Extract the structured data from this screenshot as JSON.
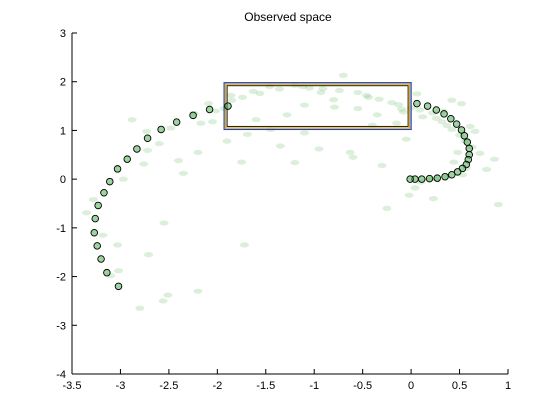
{
  "chart_data": {
    "type": "scatter",
    "title": "Observed space",
    "xlabel": "",
    "ylabel": "",
    "xlim": [
      -3.5,
      1
    ],
    "ylim": [
      -4,
      3
    ],
    "xticks": [
      -3.5,
      -3,
      -2.5,
      -2,
      -1.5,
      -1,
      -0.5,
      0,
      0.5,
      1
    ],
    "xtick_labels": [
      "-3.5",
      "-3",
      "-2.5",
      "-2",
      "-1.5",
      "-1",
      "-0.5",
      "0",
      "0.5",
      "1"
    ],
    "yticks": [
      -4,
      -3,
      -2,
      -1,
      0,
      1,
      2,
      3
    ],
    "ytick_labels": [
      "-4",
      "-3",
      "-2",
      "-1",
      "0",
      "1",
      "2",
      "3"
    ],
    "grid": false,
    "legend": "none",
    "colors": {
      "cloud": "#5cb85c",
      "marker_fill": "#4caf50",
      "marker_edge": "#000000",
      "box_outer": "#1f3fbf",
      "box_mid": "#e0a800",
      "box_inner": "#1a1a1a"
    },
    "series": [
      {
        "style": "faint-cloud",
        "x": [
          -3.02,
          -3.03,
          -2.56,
          -2.51,
          -3.18,
          -3.35,
          -3.28,
          -2.97,
          -2.76,
          -2.72,
          -2.73,
          -2.88,
          -2.17,
          -2.24,
          -2.02,
          -2.09,
          -2.48,
          -2.6,
          -1.86,
          -1.74,
          -1.63,
          -1.56,
          -1.93,
          -1.36,
          -1.46,
          -1.2,
          -1.12,
          -1.05,
          -1.28,
          -0.91,
          -0.93,
          -0.74,
          -0.79,
          -0.55,
          -0.46,
          -0.44,
          -0.4,
          -0.33,
          -0.2,
          -0.13,
          -0.1,
          -0.08,
          0.0,
          0.09,
          0.22,
          0.26,
          0.32,
          0.37,
          0.42,
          0.5,
          0.56,
          0.63,
          0.71,
          0.48,
          0.44,
          0.57,
          0.53,
          0.36,
          0.25,
          0.19,
          0.1,
          0.04,
          -0.02,
          -0.63,
          -1.2,
          -1.69,
          -0.7,
          0.06,
          0.42,
          0.61,
          0.9,
          0.23,
          -0.25,
          -1.72,
          -2.2,
          -2.8,
          -2.71,
          -2.55,
          -3.1,
          -2.4,
          -2.2,
          -2.35,
          -1.9,
          -1.75,
          -1.45,
          -1.35,
          -1.1,
          -0.95,
          -0.6,
          -0.3,
          -0.05,
          -2.05,
          -1.85,
          -1.6,
          -1.1,
          -0.8,
          -0.55,
          -0.35,
          -0.15,
          0.12,
          0.33,
          0.52,
          0.66,
          0.78,
          0.86
        ],
        "y": [
          -1.88,
          -1.35,
          -2.5,
          -2.38,
          -1.15,
          -0.69,
          -0.42,
          0.0,
          0.31,
          0.59,
          0.98,
          1.22,
          1.15,
          1.35,
          1.4,
          1.55,
          1.05,
          0.73,
          1.72,
          1.68,
          1.8,
          1.76,
          1.45,
          1.85,
          1.9,
          1.93,
          1.9,
          1.87,
          1.32,
          1.86,
          1.78,
          1.82,
          1.48,
          1.78,
          1.72,
          1.68,
          1.11,
          1.64,
          1.57,
          1.53,
          1.44,
          1.38,
          1.46,
          1.42,
          1.36,
          1.25,
          1.18,
          1.1,
          1.02,
          0.9,
          0.78,
          0.66,
          0.53,
          0.55,
          0.35,
          0.22,
          0.09,
          0.04,
          0.01,
          0.0,
          -0.06,
          -0.18,
          -0.33,
          0.55,
          0.34,
          0.92,
          2.13,
          1.75,
          1.62,
          1.08,
          -0.52,
          -0.4,
          -0.6,
          -1.35,
          -2.3,
          -2.65,
          -1.55,
          -0.9,
          -1.98,
          0.38,
          0.55,
          0.12,
          0.78,
          0.35,
          1.02,
          0.68,
          0.95,
          0.62,
          0.45,
          0.28,
          0.82,
          1.18,
          1.62,
          1.22,
          1.52,
          1.63,
          1.45,
          1.32,
          1.15,
          1.28,
          1.4,
          1.55,
          0.98,
          0.2,
          0.41
        ]
      },
      {
        "style": "marker",
        "x": [
          -3.02,
          -3.14,
          -3.2,
          -3.24,
          -3.27,
          -3.26,
          -3.23,
          -3.17,
          -3.11,
          -3.03,
          -2.93,
          -2.83,
          -2.72,
          -2.58,
          -2.42,
          -2.25,
          -2.08,
          -1.89,
          0.06,
          0.17,
          0.26,
          0.34,
          0.41,
          0.47,
          0.52,
          0.55,
          0.58,
          0.6,
          0.6,
          0.59,
          0.57,
          0.53,
          0.48,
          0.42,
          0.35,
          0.27,
          0.19,
          0.11,
          0.04,
          -0.01
        ],
        "y": [
          -2.2,
          -1.92,
          -1.64,
          -1.37,
          -1.1,
          -0.81,
          -0.54,
          -0.28,
          -0.05,
          0.21,
          0.41,
          0.62,
          0.84,
          1.02,
          1.17,
          1.31,
          1.43,
          1.5,
          1.55,
          1.5,
          1.42,
          1.34,
          1.24,
          1.13,
          1.01,
          0.89,
          0.76,
          0.63,
          0.5,
          0.4,
          0.3,
          0.22,
          0.15,
          0.09,
          0.05,
          0.02,
          0.01,
          0.0,
          0.0,
          0.0
        ]
      }
    ],
    "annotations": [
      {
        "type": "rectangle",
        "x0": -1.93,
        "x1": 0.0,
        "y0": 1.02,
        "y1": 1.98
      }
    ]
  }
}
